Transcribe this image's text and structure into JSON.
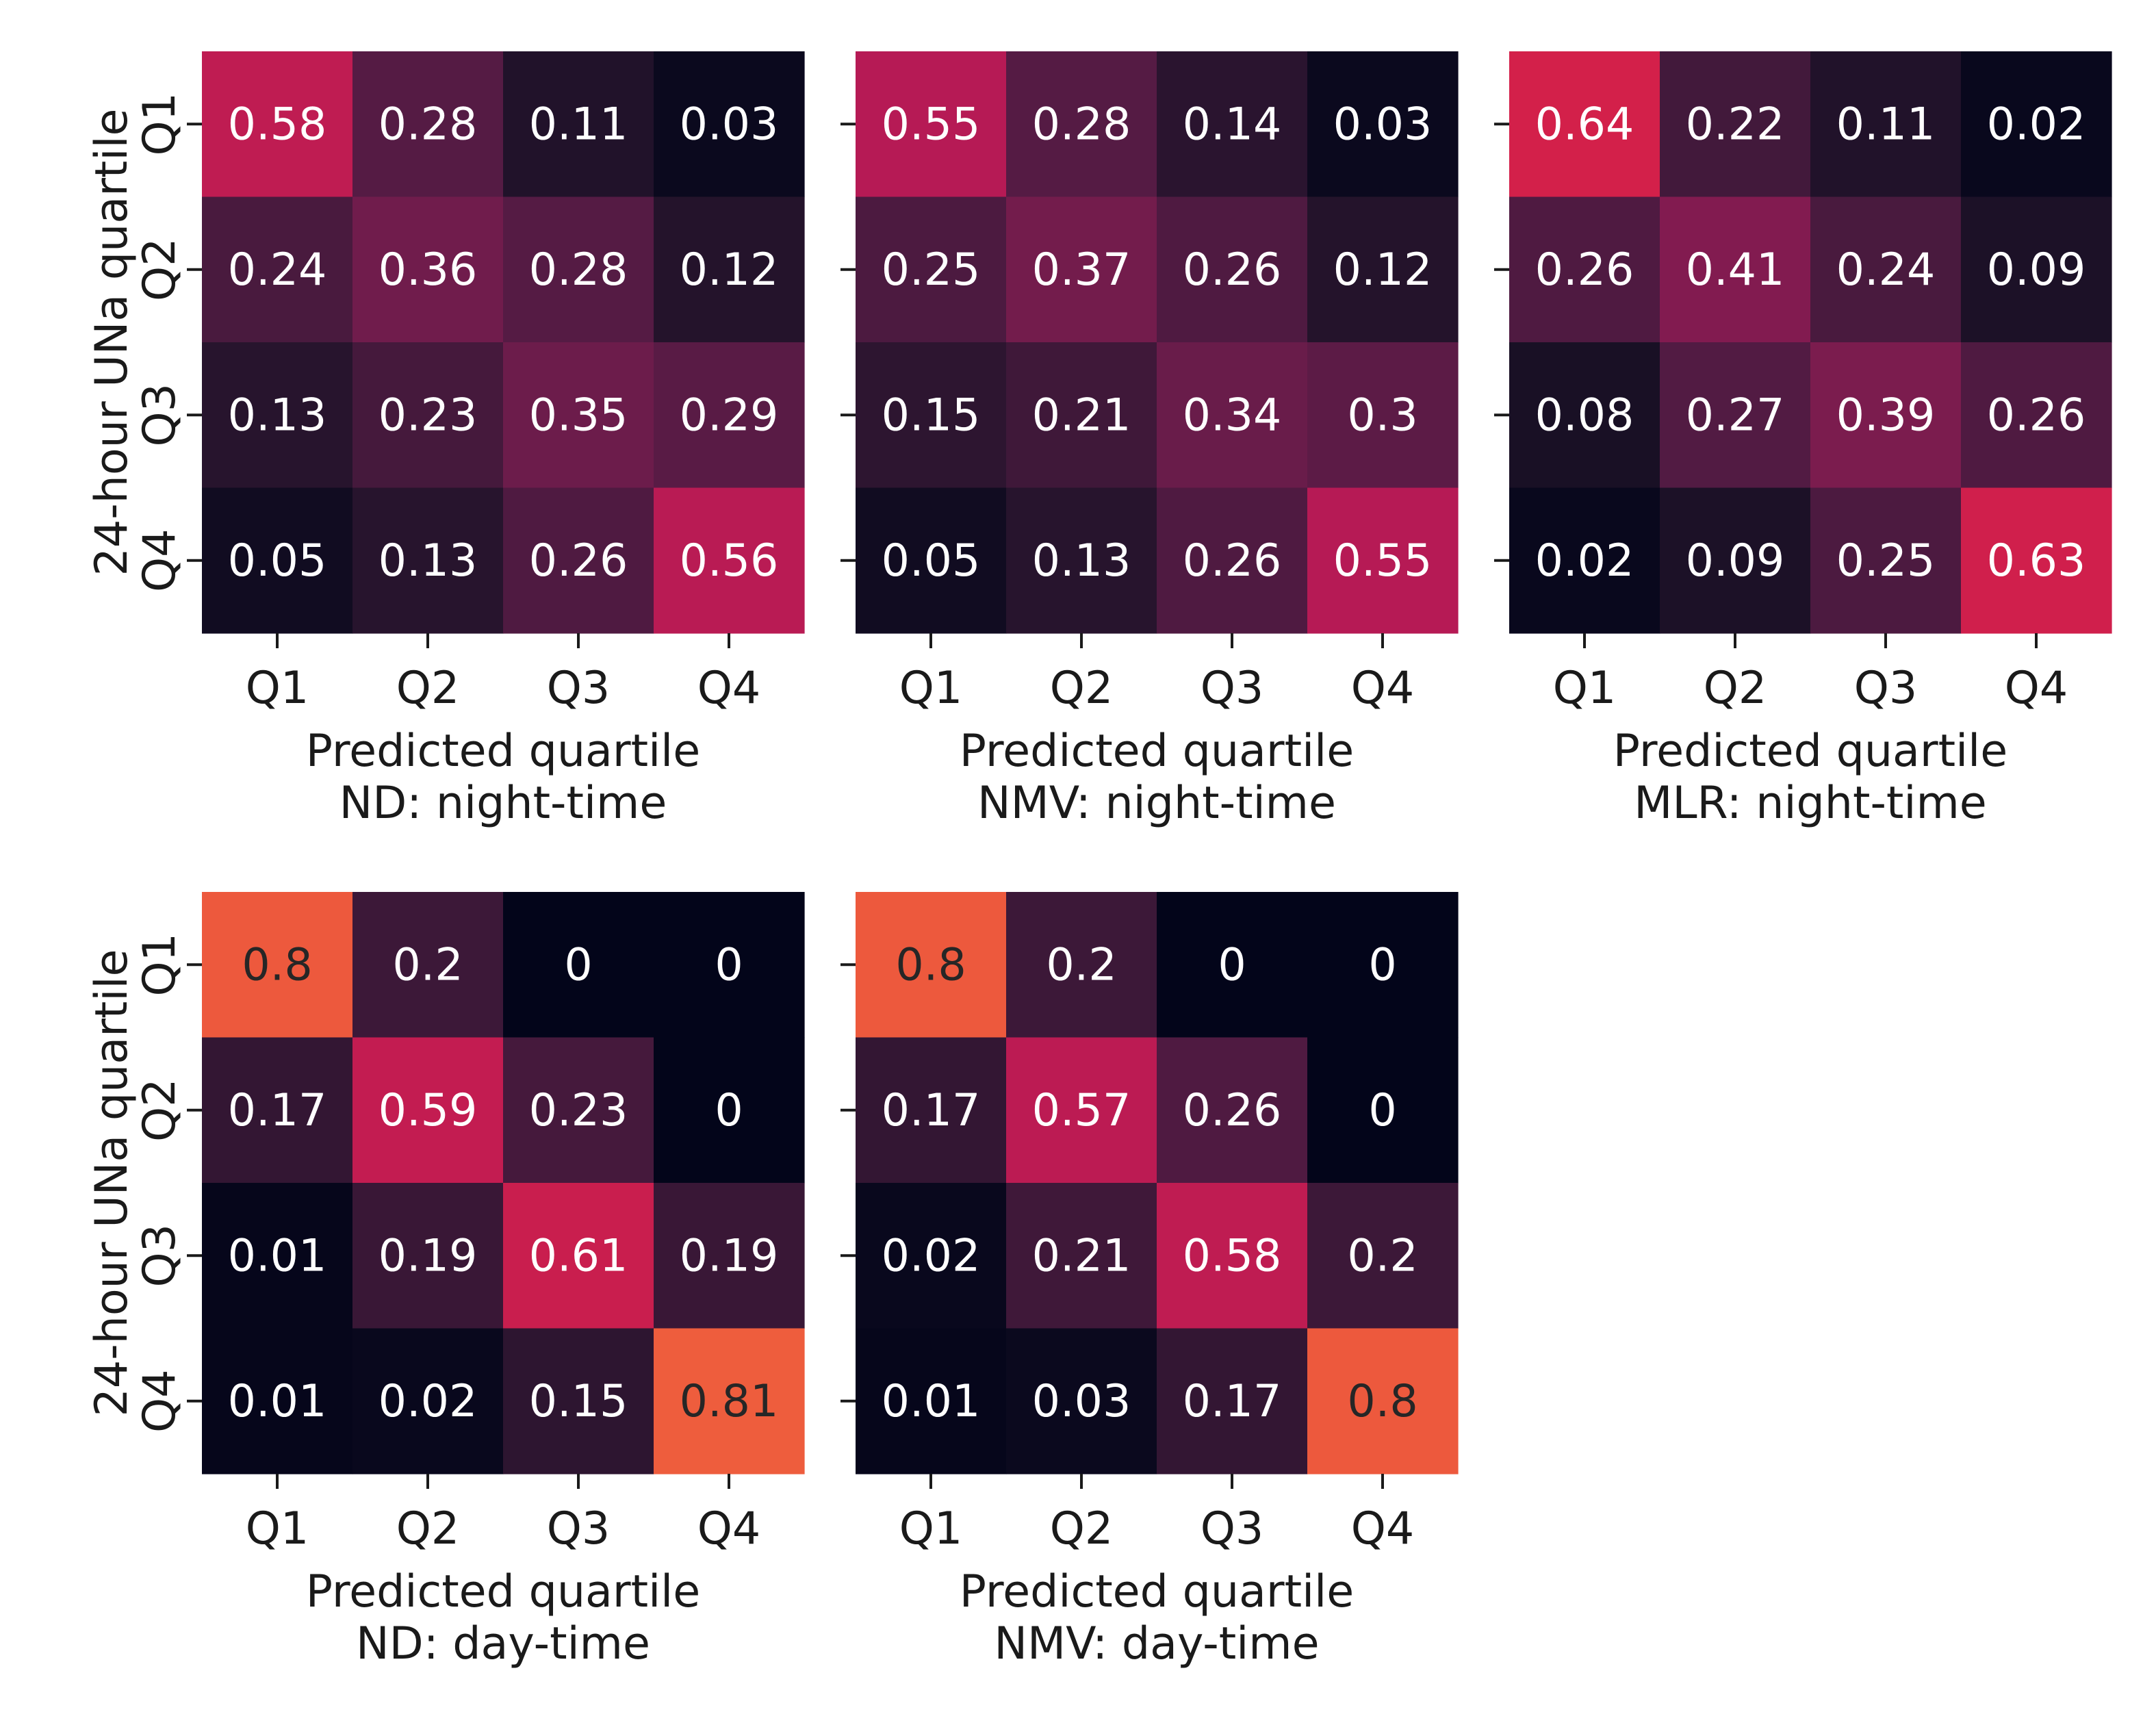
{
  "chart_data": [
    {
      "type": "heatmap",
      "title": "",
      "xlabel": "Predicted quartile\nND: night-time",
      "ylabel": "24-hour UNa quartile",
      "x_categories": [
        "Q1",
        "Q2",
        "Q3",
        "Q4"
      ],
      "y_categories": [
        "Q1",
        "Q2",
        "Q3",
        "Q4"
      ],
      "values": [
        [
          0.58,
          0.28,
          0.11,
          0.03
        ],
        [
          0.24,
          0.36,
          0.28,
          0.12
        ],
        [
          0.13,
          0.23,
          0.35,
          0.29
        ],
        [
          0.05,
          0.13,
          0.26,
          0.56
        ]
      ],
      "labels": [
        [
          "0.58",
          "0.28",
          "0.11",
          "0.03"
        ],
        [
          "0.24",
          "0.36",
          "0.28",
          "0.12"
        ],
        [
          "0.13",
          "0.23",
          "0.35",
          "0.29"
        ],
        [
          "0.05",
          "0.13",
          "0.26",
          "0.56"
        ]
      ],
      "show_ylabel": true
    },
    {
      "type": "heatmap",
      "title": "",
      "xlabel": "Predicted quartile\nNMV: night-time",
      "ylabel": "",
      "x_categories": [
        "Q1",
        "Q2",
        "Q3",
        "Q4"
      ],
      "y_categories": [
        "Q1",
        "Q2",
        "Q3",
        "Q4"
      ],
      "values": [
        [
          0.55,
          0.28,
          0.14,
          0.03
        ],
        [
          0.25,
          0.37,
          0.26,
          0.12
        ],
        [
          0.15,
          0.21,
          0.34,
          0.3
        ],
        [
          0.05,
          0.13,
          0.26,
          0.55
        ]
      ],
      "labels": [
        [
          "0.55",
          "0.28",
          "0.14",
          "0.03"
        ],
        [
          "0.25",
          "0.37",
          "0.26",
          "0.12"
        ],
        [
          "0.15",
          "0.21",
          "0.34",
          "0.3"
        ],
        [
          "0.05",
          "0.13",
          "0.26",
          "0.55"
        ]
      ],
      "show_ylabel": false
    },
    {
      "type": "heatmap",
      "title": "",
      "xlabel": "Predicted quartile\nMLR: night-time",
      "ylabel": "",
      "x_categories": [
        "Q1",
        "Q2",
        "Q3",
        "Q4"
      ],
      "y_categories": [
        "Q1",
        "Q2",
        "Q3",
        "Q4"
      ],
      "values": [
        [
          0.64,
          0.22,
          0.11,
          0.02
        ],
        [
          0.26,
          0.41,
          0.24,
          0.09
        ],
        [
          0.08,
          0.27,
          0.39,
          0.26
        ],
        [
          0.02,
          0.09,
          0.25,
          0.63
        ]
      ],
      "labels": [
        [
          "0.64",
          "0.22",
          "0.11",
          "0.02"
        ],
        [
          "0.26",
          "0.41",
          "0.24",
          "0.09"
        ],
        [
          "0.08",
          "0.27",
          "0.39",
          "0.26"
        ],
        [
          "0.02",
          "0.09",
          "0.25",
          "0.63"
        ]
      ],
      "show_ylabel": false
    },
    {
      "type": "heatmap",
      "title": "",
      "xlabel": "Predicted quartile\nND: day-time",
      "ylabel": "24-hour UNa quartile",
      "x_categories": [
        "Q1",
        "Q2",
        "Q3",
        "Q4"
      ],
      "y_categories": [
        "Q1",
        "Q2",
        "Q3",
        "Q4"
      ],
      "values": [
        [
          0.8,
          0.2,
          0,
          0
        ],
        [
          0.17,
          0.59,
          0.23,
          0
        ],
        [
          0.01,
          0.19,
          0.61,
          0.19
        ],
        [
          0.01,
          0.02,
          0.15,
          0.81
        ]
      ],
      "labels": [
        [
          "0.8",
          "0.2",
          "0",
          "0"
        ],
        [
          "0.17",
          "0.59",
          "0.23",
          "0"
        ],
        [
          "0.01",
          "0.19",
          "0.61",
          "0.19"
        ],
        [
          "0.01",
          "0.02",
          "0.15",
          "0.81"
        ]
      ],
      "show_ylabel": true
    },
    {
      "type": "heatmap",
      "title": "",
      "xlabel": "Predicted quartile\nNMV: day-time",
      "ylabel": "",
      "x_categories": [
        "Q1",
        "Q2",
        "Q3",
        "Q4"
      ],
      "y_categories": [
        "Q1",
        "Q2",
        "Q3",
        "Q4"
      ],
      "values": [
        [
          0.8,
          0.2,
          0,
          0
        ],
        [
          0.17,
          0.57,
          0.26,
          0
        ],
        [
          0.02,
          0.21,
          0.58,
          0.2
        ],
        [
          0.01,
          0.03,
          0.17,
          0.8
        ]
      ],
      "labels": [
        [
          "0.8",
          "0.2",
          "0",
          "0"
        ],
        [
          "0.17",
          "0.57",
          "0.26",
          "0"
        ],
        [
          "0.02",
          "0.21",
          "0.58",
          "0.2"
        ],
        [
          "0.01",
          "0.03",
          "0.17",
          "0.8"
        ]
      ],
      "show_ylabel": false
    }
  ],
  "colormap": {
    "name": "rocket",
    "vmin": 0.0,
    "vmax": 1.0,
    "stops": [
      "#03051a",
      "#1c1127",
      "#361735",
      "#531b43",
      "#711c4c",
      "#921b53",
      "#b41a56",
      "#d21f4b",
      "#e43c3e",
      "#ef603d",
      "#f47f58",
      "#f59e72"
    ],
    "dark_text_above": 0.75,
    "light_text_color": "#ffffff",
    "dark_text_color": "#262626"
  }
}
